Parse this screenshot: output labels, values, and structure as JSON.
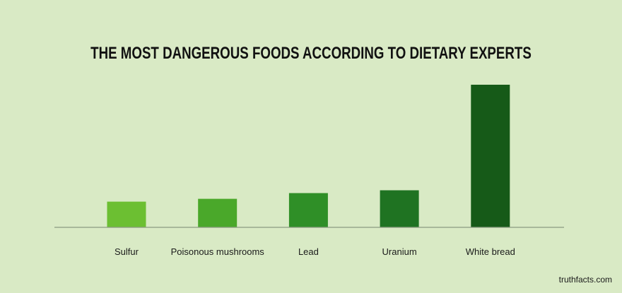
{
  "chart_data": {
    "type": "bar",
    "title": "THE MOST DANGEROUS FOODS ACCORDING TO DIETARY EXPERTS",
    "categories": [
      "Sulfur",
      "Poisonous mushrooms",
      "Lead",
      "Uranium",
      "White bread"
    ],
    "values": [
      18,
      20,
      24,
      26,
      100
    ],
    "ylim": [
      0,
      100
    ],
    "xlabel": "",
    "ylabel": "",
    "grid": false,
    "legend": "none",
    "bar_colors": [
      "#6cbf32",
      "#4aa82a",
      "#2f8f27",
      "#1f7322",
      "#165a18"
    ],
    "axis_color": "#8a9a80"
  },
  "source": "truthfacts.com"
}
